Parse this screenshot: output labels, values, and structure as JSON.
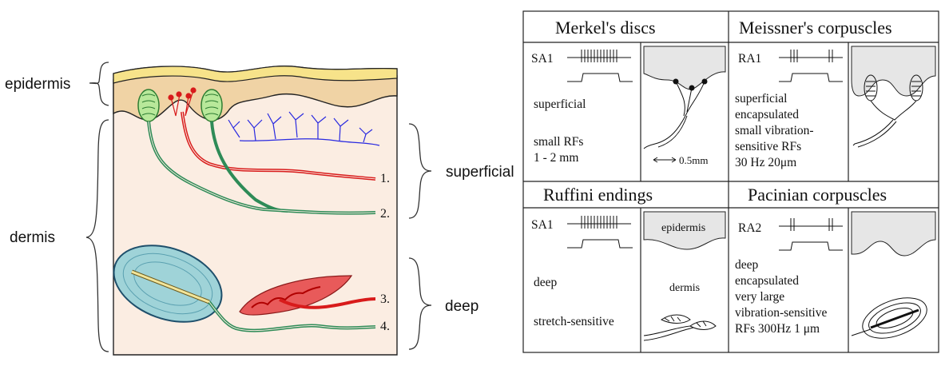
{
  "left_diagram": {
    "layer_labels": {
      "epidermis": "epidermis",
      "dermis": "dermis"
    },
    "depth_labels": {
      "superficial": "superficial",
      "deep": "deep"
    },
    "fiber_numbers": [
      "1.",
      "2.",
      "3.",
      "4."
    ]
  },
  "table": {
    "cells": [
      {
        "title": "Merkel's discs",
        "code": "SA1",
        "lines": [
          "superficial",
          "",
          "small RFs",
          "1 - 2 mm"
        ],
        "scale": "0.5mm"
      },
      {
        "title": "Meissner's corpuscles",
        "code": "RA1",
        "lines": [
          "superficial",
          "encapsulated",
          "small vibration-",
          "sensitive RFs",
          "30 Hz 20μm"
        ]
      },
      {
        "title": "Ruffini endings",
        "code": "SA1",
        "lines": [
          "deep",
          "",
          "",
          "stretch-sensitive"
        ],
        "sketch_labels": {
          "epidermis": "epidermis",
          "dermis": "dermis"
        }
      },
      {
        "title": "Pacinian corpuscles",
        "code": "RA2",
        "lines": [
          "deep",
          "encapsulated",
          "very large",
          "vibration-sensitive",
          "RFs  300Hz 1 μm"
        ]
      }
    ]
  }
}
